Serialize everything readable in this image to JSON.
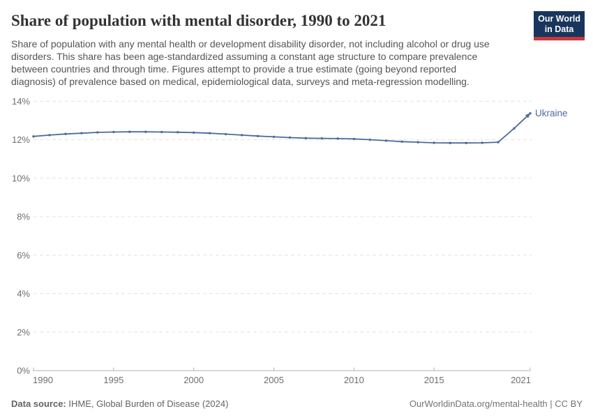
{
  "header": {
    "title": "Share of population with mental disorder, 1990 to 2021",
    "subtitle_lines": [
      "Share of population with any mental health or development disability disorder, not including alcohol or drug use",
      "disorders. This share has been age-standardized assuming a constant age structure to compare prevalence",
      "between countries and through time. Figures attempt to provide a true estimate (going beyond reported",
      "diagnosis) of prevalence based on medical, epidemiological data, surveys and meta-regression modelling."
    ],
    "logo": {
      "line1": "Our World",
      "line2": "in Data",
      "bg_color": "#18365d",
      "accent_color": "#c7383f"
    }
  },
  "chart_data": {
    "type": "line",
    "title": "Share of population with mental disorder, 1990 to 2021",
    "x": [
      1990,
      1991,
      1992,
      1993,
      1994,
      1995,
      1996,
      1997,
      1998,
      1999,
      2000,
      2001,
      2002,
      2003,
      2004,
      2005,
      2006,
      2007,
      2008,
      2009,
      2010,
      2011,
      2012,
      2013,
      2014,
      2015,
      2016,
      2017,
      2018,
      2019,
      2020,
      2021
    ],
    "series": [
      {
        "name": "Ukraine",
        "color": "#4C6A9C",
        "values": [
          12.17,
          12.24,
          12.3,
          12.34,
          12.38,
          12.4,
          12.41,
          12.41,
          12.4,
          12.39,
          12.37,
          12.34,
          12.29,
          12.24,
          12.19,
          12.15,
          12.11,
          12.08,
          12.07,
          12.06,
          12.04,
          12.0,
          11.95,
          11.9,
          11.87,
          11.84,
          11.83,
          11.83,
          11.84,
          11.87,
          12.59,
          13.37
        ]
      }
    ],
    "end_label": "Ukraine",
    "x_ticks": [
      1990,
      1995,
      2000,
      2005,
      2010,
      2015,
      2021
    ],
    "x_tick_labels": [
      "1990",
      "1995",
      "2000",
      "2005",
      "2010",
      "2015",
      "2021"
    ],
    "y_ticks": [
      0,
      2,
      4,
      6,
      8,
      10,
      12,
      14
    ],
    "y_tick_suffix": "%",
    "xlim": [
      1990,
      2021
    ],
    "ylim": [
      0,
      14
    ],
    "grid": "horizontal-dashed",
    "grid_color": "#e3e3e3",
    "axis_color": "#b0b0b0",
    "tick_label_color": "#6e6e6e",
    "legend_position": "end-of-line-label"
  },
  "footer": {
    "source_label": "Data source:",
    "source_text": "IHME, Global Burden of Disease (2024)",
    "rights": "OurWorldinData.org/mental-health | CC BY"
  }
}
